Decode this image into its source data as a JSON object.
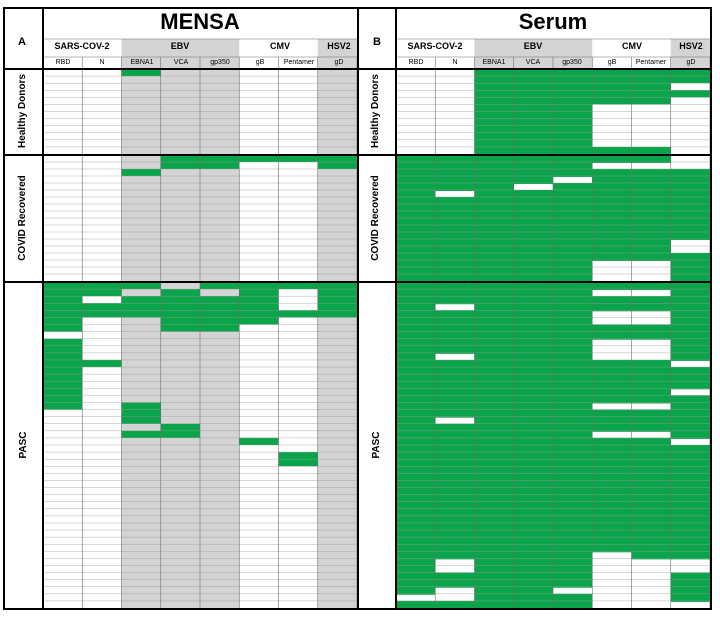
{
  "colors": {
    "positive": "#0aa54a",
    "negative_ebv": "#d4d4d4",
    "negative": "#ffffff",
    "grid": "#9a9a9a",
    "border": "#000000"
  },
  "row_groups": [
    "Healthy Donors",
    "COVID Recovered",
    "PASC"
  ],
  "panels": [
    {
      "letter": "A",
      "title": "MENSA",
      "antigen_groups": [
        {
          "label": "SARS-COV-2",
          "columns": [
            "RBD",
            "N"
          ]
        },
        {
          "label": "EBV",
          "columns": [
            "EBNA1",
            "VCA",
            "gp350"
          ]
        },
        {
          "label": "CMV",
          "columns": [
            "gB",
            "Pentamer"
          ]
        },
        {
          "label": "HSV2",
          "columns": [
            "gD"
          ]
        }
      ]
    },
    {
      "letter": "B",
      "title": "Serum",
      "antigen_groups": [
        {
          "label": "SARS-COV-2",
          "columns": [
            "RBD",
            "N"
          ]
        },
        {
          "label": "EBV",
          "columns": [
            "EBNA1",
            "VCA",
            "gp350"
          ]
        },
        {
          "label": "CMV",
          "columns": [
            "gB",
            "Pentamer"
          ]
        },
        {
          "label": "HSV2",
          "columns": [
            "gD"
          ]
        }
      ]
    }
  ]
}
